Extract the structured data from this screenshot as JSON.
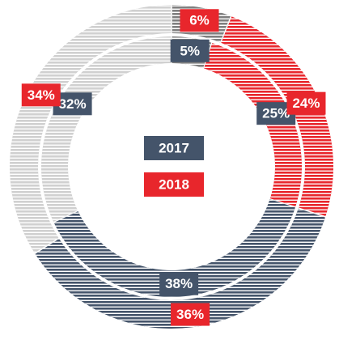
{
  "chart_data": {
    "type": "donut",
    "segment_colors": [
      "#7f7f7f",
      "#e8262c",
      "#44546a",
      "#d0d0d0"
    ],
    "series": [
      {
        "name": "2017",
        "color": "#44546a",
        "values": [
          5,
          25,
          38,
          32
        ],
        "value_labels": [
          "5%",
          "25%",
          "38%",
          "32%"
        ]
      },
      {
        "name": "2018",
        "color": "#e8262c",
        "values": [
          6,
          24,
          36,
          34
        ],
        "value_labels": [
          "6%",
          "24%",
          "36%",
          "34%"
        ]
      }
    ]
  }
}
